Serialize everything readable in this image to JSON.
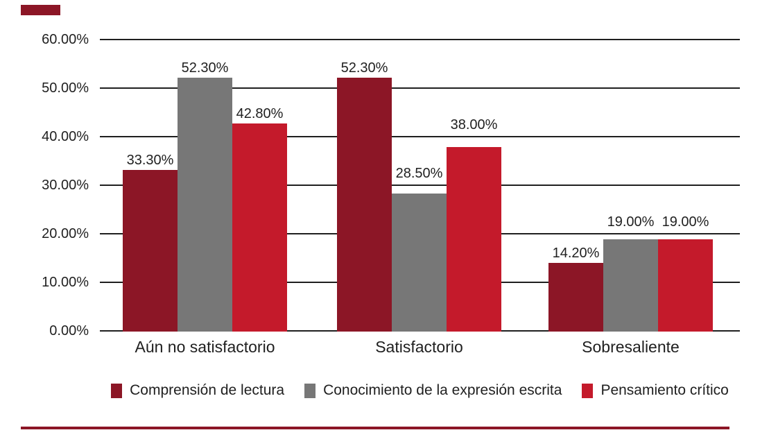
{
  "page": {
    "background": "#ffffff",
    "accent_color": "#8C1626",
    "text_color": "#1f1f1f"
  },
  "chart_data": {
    "type": "bar",
    "title": "",
    "categories": [
      "Aún no satisfactorio",
      "Satisfactorio",
      "Sobresaliente"
    ],
    "series": [
      {
        "name": "Comprensión de lectura",
        "color": "#8C1626",
        "values": [
          33.3,
          52.3,
          14.2
        ],
        "value_labels": [
          "33.30%",
          "52.30%",
          "14.20%"
        ]
      },
      {
        "name": "Conocimiento de la expresión escrita",
        "color": "#777777",
        "values": [
          52.3,
          28.5,
          19.0
        ],
        "value_labels": [
          "52.30%",
          "28.50%",
          "19.00%"
        ]
      },
      {
        "name": "Pensamiento crítico",
        "color": "#C41A2B",
        "values": [
          42.8,
          38.0,
          19.0
        ],
        "value_labels": [
          "42.80%",
          "38.00%",
          "19.00%"
        ]
      }
    ],
    "y_axis": {
      "min": 0,
      "max": 60,
      "step": 10,
      "ticks": [
        0,
        10,
        20,
        30,
        40,
        50,
        60
      ],
      "tick_labels": [
        "0.00%",
        "10.00%",
        "20.00%",
        "30.00%",
        "40.00%",
        "50.00%",
        "60.00%"
      ]
    },
    "xlabel": "",
    "ylabel": "",
    "grid": true,
    "gridline_color": "#1f1f1f",
    "legend_position": "bottom"
  }
}
